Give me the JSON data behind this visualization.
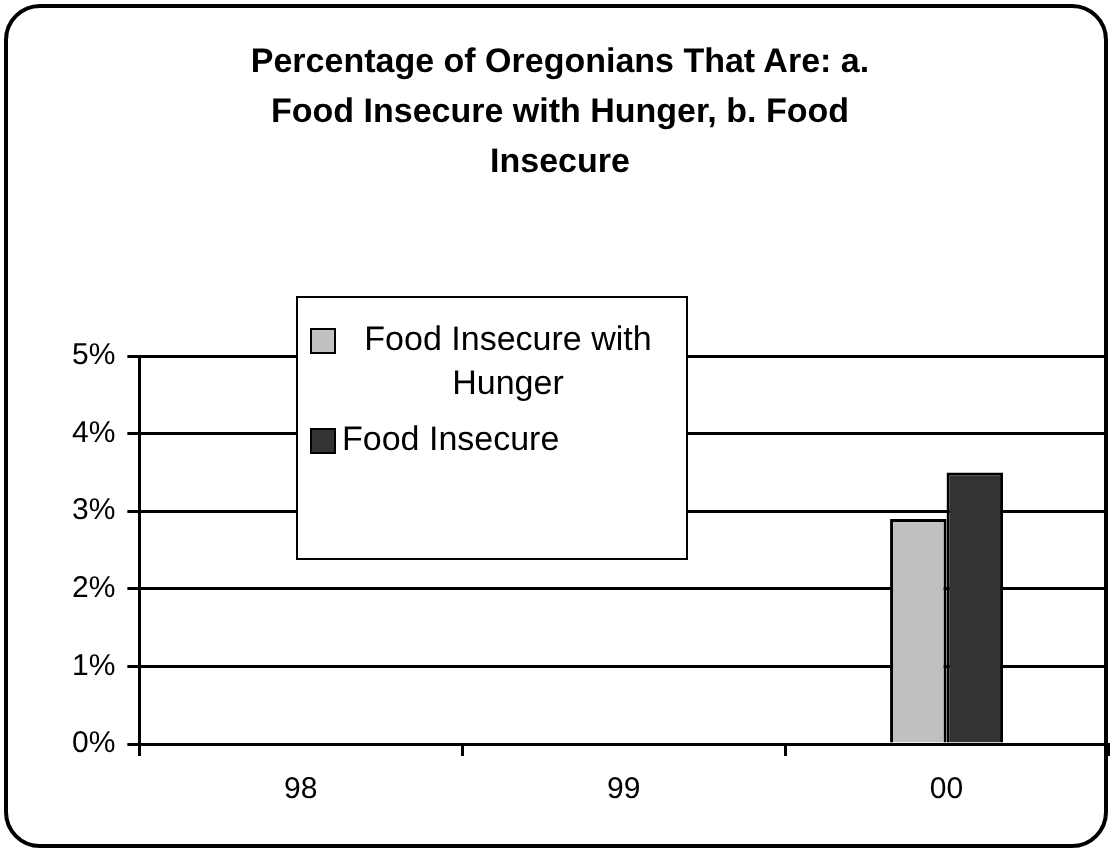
{
  "chart_data": {
    "type": "bar",
    "title": "Percentage of Oregonians That Are: a. Food Insecure with Hunger, b. Food Insecure",
    "categories": [
      "98",
      "99",
      "00"
    ],
    "series": [
      {
        "name": "Food Insecure with Hunger",
        "color": "#c0c0c0",
        "values": [
          null,
          null,
          2.9
        ]
      },
      {
        "name": "Food Insecure",
        "color": "#333333",
        "values": [
          null,
          null,
          3.5
        ]
      }
    ],
    "ylim": [
      0,
      5
    ],
    "yticks": [
      {
        "value": 0,
        "label": "0%"
      },
      {
        "value": 1,
        "label": "1%"
      },
      {
        "value": 2,
        "label": "2%"
      },
      {
        "value": 3,
        "label": "3%"
      },
      {
        "value": 4,
        "label": "4%"
      },
      {
        "value": 5,
        "label": "5%"
      }
    ],
    "grid": "y",
    "legend": "top left"
  }
}
